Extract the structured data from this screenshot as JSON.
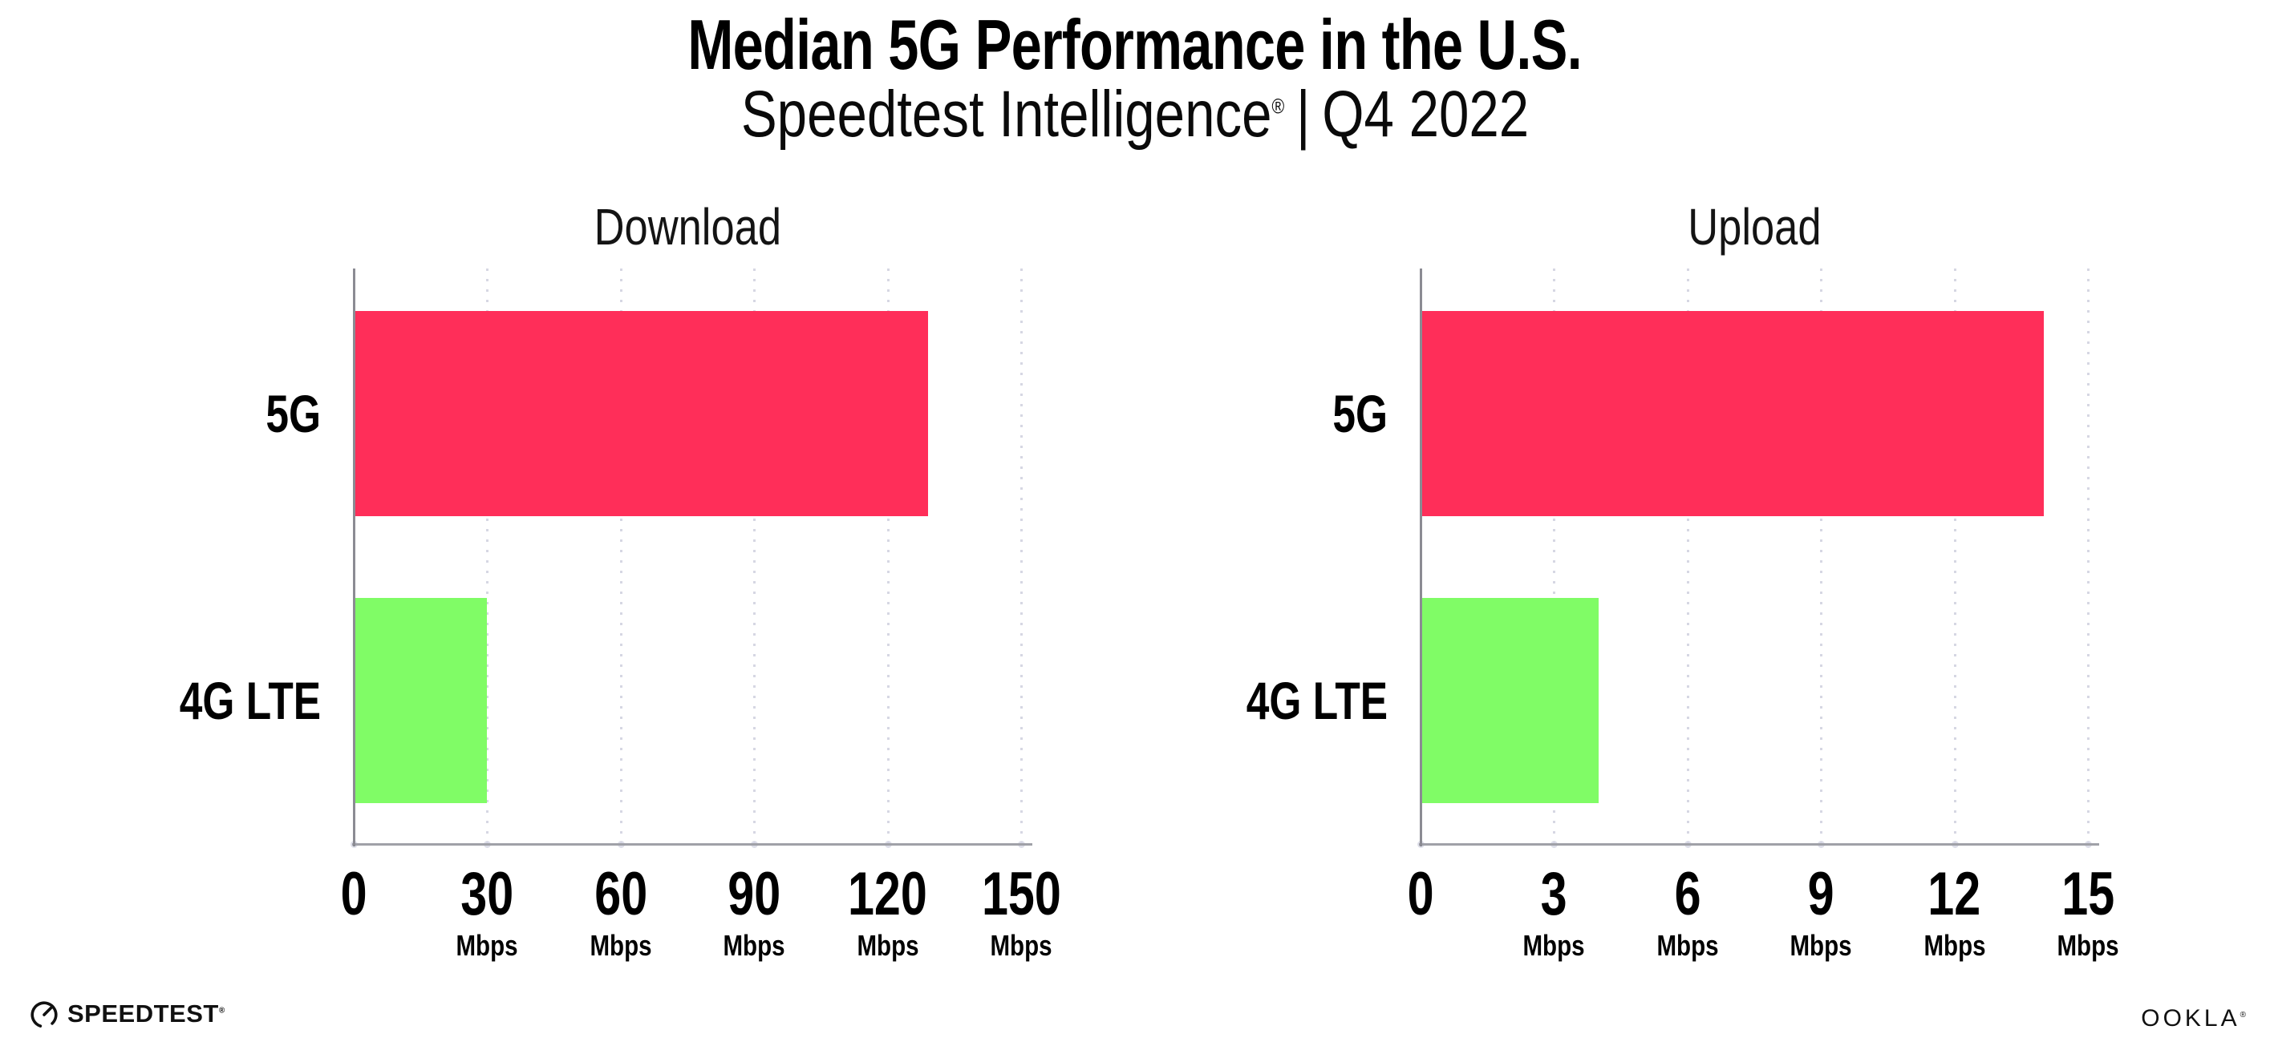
{
  "header": {
    "title": "Median 5G Performance in the U.S.",
    "subtitle": {
      "brand": "Speedtest Intelligence",
      "registered": "®",
      "separator": "|",
      "period": "Q4 2022"
    }
  },
  "colors": {
    "bar_5g": "#ff2e59",
    "bar_4g_lte": "#80fc66",
    "gridline": "#d6d7e3",
    "x_axis": "#a0a1a8",
    "y_axis": "#8b8b93",
    "text": "#000000",
    "background": "#ffffff"
  },
  "chart_data": [
    {
      "type": "bar",
      "orientation": "horizontal",
      "title": "Download",
      "categories": [
        "5G",
        "4G LTE"
      ],
      "values": [
        129,
        30
      ],
      "unit": "Mbps",
      "series_colors": [
        "#ff2e59",
        "#80fc66"
      ],
      "xlim": [
        0,
        150
      ],
      "xticks": [
        0,
        30,
        60,
        90,
        120,
        150
      ],
      "xtick_unit": "Mbps",
      "grid": "vertical-dotted",
      "legend": "none"
    },
    {
      "type": "bar",
      "orientation": "horizontal",
      "title": "Upload",
      "categories": [
        "5G",
        "4G LTE"
      ],
      "values": [
        14,
        4
      ],
      "unit": "Mbps",
      "series_colors": [
        "#ff2e59",
        "#80fc66"
      ],
      "xlim": [
        0,
        15
      ],
      "xticks": [
        0,
        3,
        6,
        9,
        12,
        15
      ],
      "xtick_unit": "Mbps",
      "grid": "vertical-dotted",
      "legend": "none"
    }
  ],
  "footer": {
    "speedtest_logo_text": "SPEEDTEST",
    "speedtest_registered": "®",
    "ookla_logo_text": "OOKLA",
    "ookla_registered": "®"
  }
}
